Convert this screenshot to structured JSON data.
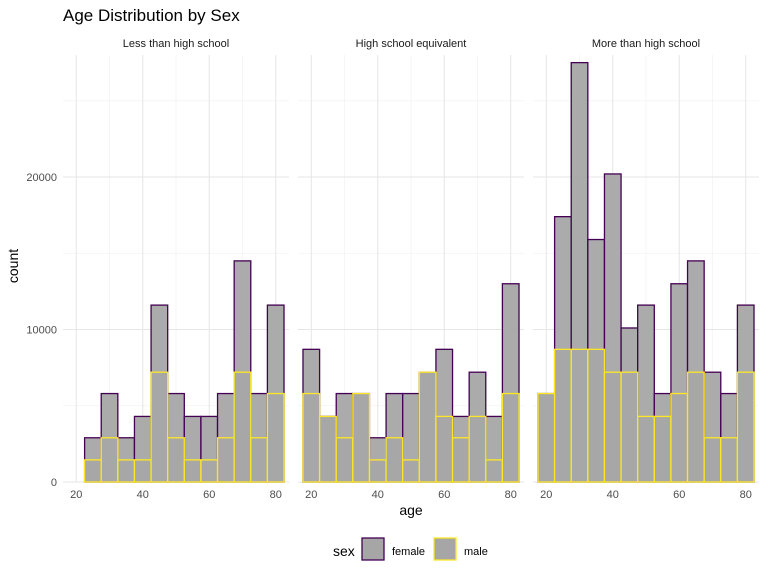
{
  "chart_data": {
    "type": "histogram",
    "title": "Age Distribution by Sex",
    "xlabel": "age",
    "ylabel": "count",
    "x_ticks": [
      20,
      40,
      60,
      80
    ],
    "y_ticks": [
      0,
      10000,
      20000
    ],
    "y_tick_labels": [
      "0",
      "10000",
      "20000"
    ],
    "xlim": [
      16,
      84
    ],
    "ylim": [
      0,
      28000
    ],
    "bins": [
      20,
      25,
      30,
      35,
      40,
      45,
      50,
      55,
      60,
      65,
      70,
      75,
      80
    ],
    "bin_width": 5,
    "legend": {
      "title": "sex",
      "placement": "bottom"
    },
    "series": [
      {
        "name": "female",
        "fill": "#a6a6a6",
        "stroke": "#440154"
      },
      {
        "name": "male",
        "fill": "#a6a6a6",
        "stroke": "#fde725"
      }
    ],
    "facets": [
      {
        "label": "Less than high school",
        "female": [
          0,
          2900,
          5800,
          2900,
          4300,
          11600,
          5800,
          4300,
          4300,
          5800,
          14500,
          5800,
          11600
        ],
        "male": [
          0,
          1450,
          2900,
          1450,
          1450,
          7200,
          2900,
          1450,
          1450,
          2900,
          7200,
          2900,
          5800
        ]
      },
      {
        "label": "High school equivalent",
        "female": [
          8700,
          4300,
          5800,
          5800,
          2900,
          5800,
          5800,
          7200,
          8700,
          4300,
          7200,
          4300,
          13000
        ],
        "male": [
          5800,
          4300,
          2900,
          5800,
          1450,
          2900,
          1450,
          7200,
          4300,
          2900,
          4300,
          1450,
          5800
        ]
      },
      {
        "label": "More than high school",
        "female": [
          5800,
          17400,
          27500,
          15900,
          20200,
          10100,
          11600,
          5800,
          13000,
          14500,
          7200,
          5800,
          11600
        ],
        "male": [
          5800,
          8700,
          8700,
          8700,
          7200,
          7200,
          4300,
          4300,
          5800,
          7200,
          2900,
          2900,
          7200
        ]
      }
    ]
  }
}
